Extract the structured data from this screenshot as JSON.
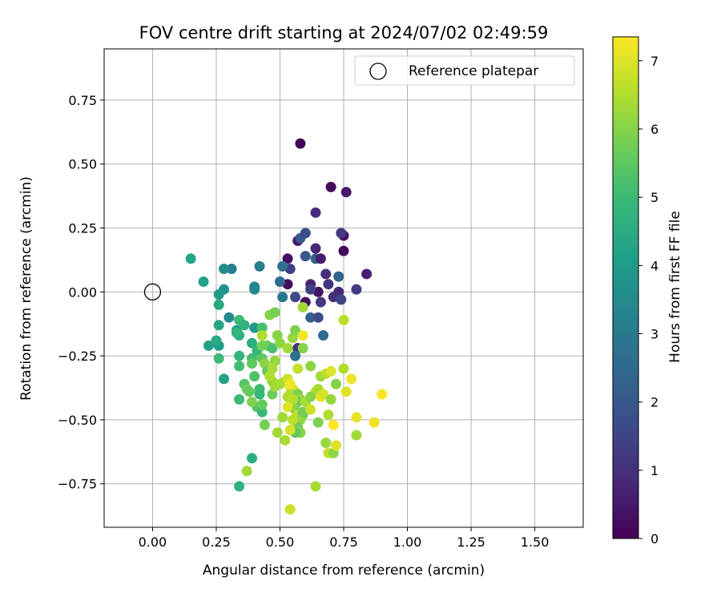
{
  "chart_data": {
    "type": "scatter",
    "title": "FOV centre drift starting at 2024/07/02 02:49:59",
    "xlabel": "Angular distance from reference (arcmin)",
    "ylabel": "Rotation from reference (arcmin)",
    "xlim": [
      -0.19,
      1.69
    ],
    "ylim": [
      -0.92,
      0.95
    ],
    "xticks": [
      0.0,
      0.25,
      0.5,
      0.75,
      1.0,
      1.25,
      1.5
    ],
    "xtick_labels": [
      "0.00",
      "0.25",
      "0.50",
      "0.75",
      "1.00",
      "1.25",
      "1.50"
    ],
    "yticks": [
      -0.75,
      -0.5,
      -0.25,
      0.0,
      0.25,
      0.5,
      0.75
    ],
    "ytick_labels": [
      "−0.75",
      "−0.50",
      "−0.25",
      "0.00",
      "0.25",
      "0.50",
      "0.75"
    ],
    "grid": true,
    "legend": {
      "position": "top-right",
      "entries": [
        "Reference platepar"
      ]
    },
    "reference_point": {
      "x": 0.0,
      "y": 0.0
    },
    "colorbar": {
      "label": "Hours from first FF file",
      "colormap": "viridis",
      "range": [
        0,
        7.35
      ],
      "ticks": [
        0,
        1,
        2,
        3,
        4,
        5,
        6,
        7
      ],
      "tick_labels": [
        "0",
        "1",
        "2",
        "3",
        "4",
        "5",
        "6",
        "7"
      ]
    },
    "points": [
      [
        0.58,
        0.58,
        0.1
      ],
      [
        0.7,
        0.41,
        0.2
      ],
      [
        0.76,
        0.39,
        0.5
      ],
      [
        0.64,
        0.31,
        0.9
      ],
      [
        0.75,
        0.22,
        0.3
      ],
      [
        0.74,
        0.23,
        1.2
      ],
      [
        0.75,
        0.16,
        0.2
      ],
      [
        0.84,
        0.07,
        0.6
      ],
      [
        0.8,
        0.01,
        1.3
      ],
      [
        0.73,
        0.0,
        0.8
      ],
      [
        0.71,
        -0.02,
        1.0
      ],
      [
        0.74,
        -0.03,
        1.5
      ],
      [
        0.69,
        0.03,
        1.1
      ],
      [
        0.65,
        0.0,
        0.4
      ],
      [
        0.62,
        0.03,
        0.7
      ],
      [
        0.62,
        0.01,
        1.4
      ],
      [
        0.6,
        -0.04,
        0.3
      ],
      [
        0.66,
        -0.04,
        1.2
      ],
      [
        0.56,
        -0.02,
        1.6
      ],
      [
        0.53,
        0.03,
        0.2
      ],
      [
        0.54,
        0.09,
        1.4
      ],
      [
        0.53,
        0.13,
        0.3
      ],
      [
        0.57,
        0.2,
        0.4
      ],
      [
        0.58,
        0.21,
        2.1
      ],
      [
        0.6,
        0.23,
        1.8
      ],
      [
        0.6,
        0.14,
        2.0
      ],
      [
        0.64,
        0.17,
        0.8
      ],
      [
        0.64,
        0.13,
        2.3
      ],
      [
        0.68,
        0.07,
        1.0
      ],
      [
        0.66,
        0.13,
        0.6
      ],
      [
        0.73,
        0.06,
        2.4
      ],
      [
        0.62,
        -0.1,
        2.2
      ],
      [
        0.65,
        -0.1,
        1.6
      ],
      [
        0.67,
        -0.17,
        2.6
      ],
      [
        0.57,
        -0.22,
        1.0
      ],
      [
        0.56,
        -0.25,
        2.8
      ],
      [
        0.51,
        0.1,
        2.7
      ],
      [
        0.5,
        0.04,
        2.5
      ],
      [
        0.51,
        -0.02,
        2.9
      ],
      [
        0.42,
        0.1,
        3.2
      ],
      [
        0.4,
        0.02,
        3.3
      ],
      [
        0.4,
        0.01,
        3.4
      ],
      [
        0.31,
        0.09,
        3.1
      ],
      [
        0.28,
        0.09,
        3.6
      ],
      [
        0.28,
        0.01,
        3.8
      ],
      [
        0.2,
        0.04,
        4.2
      ],
      [
        0.15,
        0.13,
        4.3
      ],
      [
        0.26,
        -0.01,
        4.0
      ],
      [
        0.26,
        -0.05,
        4.4
      ],
      [
        0.3,
        -0.1,
        3.5
      ],
      [
        0.26,
        -0.13,
        4.3
      ],
      [
        0.33,
        -0.15,
        4.1
      ],
      [
        0.34,
        -0.17,
        4.6
      ],
      [
        0.33,
        -0.16,
        4.8
      ],
      [
        0.34,
        -0.11,
        5.0
      ],
      [
        0.36,
        -0.13,
        4.7
      ],
      [
        0.4,
        -0.14,
        3.9
      ],
      [
        0.43,
        -0.14,
        5.2
      ],
      [
        0.39,
        -0.2,
        4.6
      ],
      [
        0.41,
        -0.23,
        4.9
      ],
      [
        0.22,
        -0.21,
        4.2
      ],
      [
        0.26,
        -0.21,
        4.0
      ],
      [
        0.25,
        -0.19,
        4.5
      ],
      [
        0.26,
        -0.26,
        5.0
      ],
      [
        0.28,
        -0.34,
        4.2
      ],
      [
        0.34,
        -0.25,
        4.8
      ],
      [
        0.34,
        -0.29,
        5.1
      ],
      [
        0.36,
        -0.36,
        5.4
      ],
      [
        0.37,
        -0.38,
        5.7
      ],
      [
        0.38,
        -0.39,
        5.6
      ],
      [
        0.4,
        -0.33,
        5.3
      ],
      [
        0.42,
        -0.38,
        5.0
      ],
      [
        0.41,
        -0.45,
        5.4
      ],
      [
        0.42,
        -0.4,
        4.9
      ],
      [
        0.43,
        -0.47,
        5.0
      ],
      [
        0.44,
        -0.52,
        5.8
      ],
      [
        0.43,
        -0.44,
        5.6
      ],
      [
        0.39,
        -0.43,
        5.9
      ],
      [
        0.34,
        -0.42,
        5.0
      ],
      [
        0.39,
        -0.65,
        4.6
      ],
      [
        0.37,
        -0.7,
        6.3
      ],
      [
        0.34,
        -0.76,
        4.7
      ],
      [
        0.39,
        -0.26,
        5.1
      ],
      [
        0.39,
        -0.28,
        5.5
      ],
      [
        0.43,
        -0.26,
        5.5
      ],
      [
        0.43,
        -0.21,
        5.8
      ],
      [
        0.45,
        -0.21,
        5.7
      ],
      [
        0.47,
        -0.22,
        5.2
      ],
      [
        0.46,
        -0.09,
        6.0
      ],
      [
        0.48,
        -0.08,
        5.8
      ],
      [
        0.49,
        -0.17,
        6.0
      ],
      [
        0.5,
        -0.2,
        6.1
      ],
      [
        0.44,
        -0.28,
        6.1
      ],
      [
        0.45,
        -0.31,
        5.6
      ],
      [
        0.47,
        -0.35,
        6.2
      ],
      [
        0.47,
        -0.4,
        5.7
      ],
      [
        0.48,
        -0.37,
        6.3
      ],
      [
        0.5,
        -0.36,
        6.4
      ],
      [
        0.46,
        -0.33,
        6.5
      ],
      [
        0.43,
        -0.17,
        6.5
      ],
      [
        0.48,
        -0.27,
        6.2
      ],
      [
        0.47,
        -0.3,
        6.4
      ],
      [
        0.53,
        -0.22,
        6.3
      ],
      [
        0.55,
        -0.18,
        6.2
      ],
      [
        0.56,
        -0.15,
        5.9
      ],
      [
        0.59,
        -0.06,
        6.3
      ],
      [
        0.59,
        -0.17,
        7.2
      ],
      [
        0.62,
        -0.29,
        6.1
      ],
      [
        0.57,
        -0.3,
        6.7
      ],
      [
        0.59,
        -0.22,
        6.0
      ],
      [
        0.52,
        -0.35,
        6.4
      ],
      [
        0.53,
        -0.34,
        6.8
      ],
      [
        0.54,
        -0.37,
        7.1
      ],
      [
        0.55,
        -0.38,
        6.6
      ],
      [
        0.56,
        -0.39,
        6.9
      ],
      [
        0.54,
        -0.4,
        6.5
      ],
      [
        0.57,
        -0.4,
        5.9
      ],
      [
        0.58,
        -0.42,
        6.2
      ],
      [
        0.57,
        -0.43,
        5.7
      ],
      [
        0.56,
        -0.46,
        6.0
      ],
      [
        0.57,
        -0.48,
        6.7
      ],
      [
        0.59,
        -0.48,
        5.6
      ],
      [
        0.58,
        -0.5,
        6.2
      ],
      [
        0.57,
        -0.53,
        5.8
      ],
      [
        0.58,
        -0.55,
        6.0
      ],
      [
        0.56,
        -0.55,
        5.5
      ],
      [
        0.54,
        -0.54,
        6.9
      ],
      [
        0.51,
        -0.49,
        6.3
      ],
      [
        0.52,
        -0.58,
        6.4
      ],
      [
        0.49,
        -0.55,
        6.3
      ],
      [
        0.53,
        -0.41,
        6.5
      ],
      [
        0.55,
        -0.42,
        6.6
      ],
      [
        0.6,
        -0.43,
        6.4
      ],
      [
        0.59,
        -0.47,
        5.8
      ],
      [
        0.64,
        -0.39,
        6.7
      ],
      [
        0.62,
        -0.41,
        6.0
      ],
      [
        0.62,
        -0.46,
        6.8
      ],
      [
        0.65,
        -0.38,
        6.4
      ],
      [
        0.66,
        -0.41,
        7.1
      ],
      [
        0.67,
        -0.4,
        6.9
      ],
      [
        0.66,
        -0.33,
        6.3
      ],
      [
        0.68,
        -0.32,
        6.6
      ],
      [
        0.7,
        -0.31,
        7.0
      ],
      [
        0.7,
        -0.42,
        6.2
      ],
      [
        0.69,
        -0.48,
        6.5
      ],
      [
        0.65,
        -0.51,
        5.9
      ],
      [
        0.68,
        -0.59,
        6.2
      ],
      [
        0.69,
        -0.63,
        6.7
      ],
      [
        0.71,
        -0.63,
        6.1
      ],
      [
        0.72,
        -0.6,
        7.0
      ],
      [
        0.71,
        -0.52,
        7.3
      ],
      [
        0.72,
        -0.36,
        6.0
      ],
      [
        0.75,
        -0.3,
        6.5
      ],
      [
        0.76,
        -0.39,
        7.0
      ],
      [
        0.78,
        -0.34,
        7.2
      ],
      [
        0.75,
        -0.11,
        6.6
      ],
      [
        0.8,
        -0.49,
        7.1
      ],
      [
        0.8,
        -0.56,
        6.3
      ],
      [
        0.87,
        -0.51,
        7.2
      ],
      [
        0.9,
        -0.4,
        7.3
      ],
      [
        0.64,
        -0.76,
        6.4
      ],
      [
        0.54,
        -0.85,
        6.8
      ],
      [
        0.54,
        -0.36,
        7.2
      ],
      [
        0.53,
        -0.45,
        7.0
      ],
      [
        0.55,
        -0.5,
        6.6
      ]
    ]
  }
}
